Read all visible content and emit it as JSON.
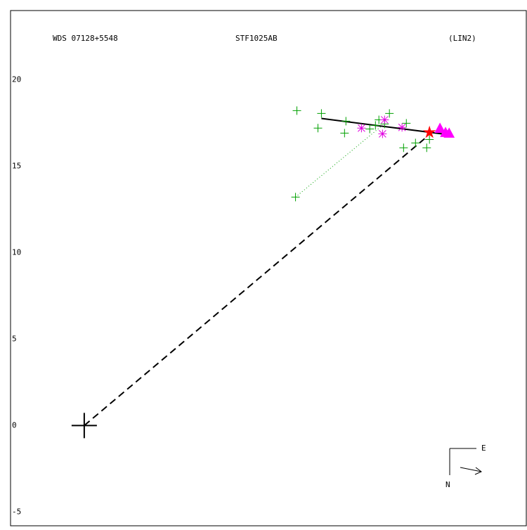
{
  "chart_data": {
    "type": "scatter",
    "title": "WDS 07128+5548",
    "subtitle": "STF1025AB",
    "annotation": "(LIN2)",
    "compass": {
      "east": "E",
      "north": "N"
    },
    "xlim": [
      -4.27,
      25.61
    ],
    "ylim": [
      -5.8,
      24.0
    ],
    "yticks": [
      -5,
      0,
      5,
      10,
      15,
      20
    ],
    "grid": false,
    "series": [
      {
        "marker": "cross",
        "color": "#000000",
        "x": [
          0
        ],
        "y": [
          0
        ]
      },
      {
        "marker": "plus",
        "color": "#00a000",
        "x": [
          12.32,
          13.74,
          13.54,
          15.08,
          15.16,
          16.54,
          16.87,
          17.07,
          17.4,
          17.68,
          18.5,
          18.66,
          19.19,
          19.84,
          20.0,
          12.24
        ],
        "y": [
          18.21,
          18.05,
          17.2,
          16.91,
          17.6,
          17.15,
          17.36,
          17.68,
          17.44,
          18.05,
          16.06,
          17.48,
          16.34,
          16.06,
          16.54,
          13.21
        ]
      },
      {
        "marker": "asterisk",
        "color": "#e000e0",
        "x": [
          16.06,
          17.28,
          17.4,
          18.41
        ],
        "y": [
          17.2,
          16.87,
          17.68,
          17.24
        ]
      },
      {
        "marker": "triangle",
        "color": "#ff00ff",
        "x": [
          20.61,
          20.93,
          21.14
        ],
        "y": [
          17.15,
          16.91,
          16.87
        ]
      },
      {
        "marker": "star",
        "color": "#ff0000",
        "x": [
          20.0
        ],
        "y": [
          16.95
        ]
      }
    ],
    "lines": [
      {
        "style": "solid",
        "color": "#000000",
        "x": [
          13.74,
          21.34
        ],
        "y": [
          17.76,
          16.79
        ]
      },
      {
        "style": "dashed",
        "color": "#000000",
        "x": [
          0,
          19.72
        ],
        "y": [
          0,
          16.59
        ]
      },
      {
        "style": "dotted",
        "color": "#00a000",
        "x": [
          12.24,
          17.2
        ],
        "y": [
          13.21,
          17.3
        ]
      }
    ]
  }
}
